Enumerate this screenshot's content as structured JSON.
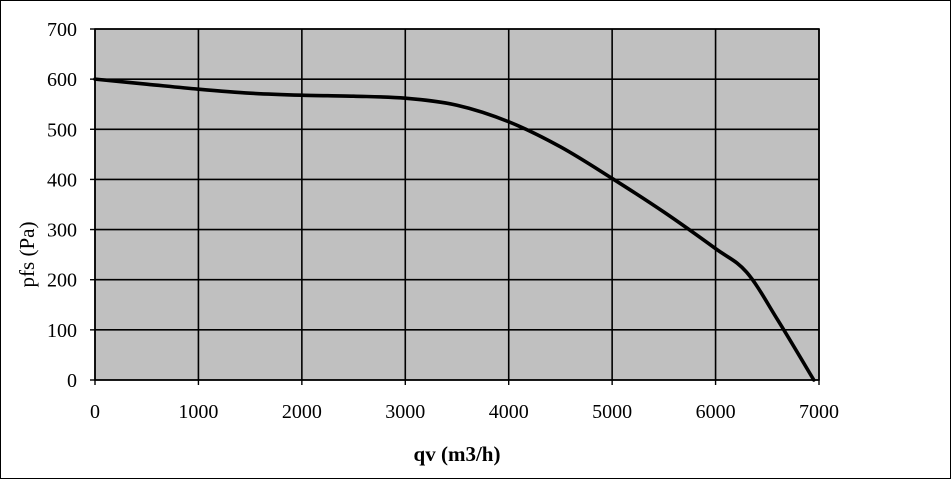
{
  "chart_data": {
    "type": "line",
    "xlabel": "qv (m3/h)",
    "ylabel": "pfs (Pa)",
    "xlim": [
      0,
      7000
    ],
    "ylim": [
      0,
      700
    ],
    "xticks": [
      "0",
      "1000",
      "2000",
      "3000",
      "4000",
      "5000",
      "6000",
      "7000"
    ],
    "yticks": [
      "0",
      "100",
      "200",
      "300",
      "400",
      "500",
      "600",
      "700"
    ],
    "grid": true,
    "legend": "none",
    "colors": {
      "plot_background": "#c0c0c0",
      "grid": "#000000",
      "line": "#000000"
    },
    "series": [
      {
        "x": [
          0,
          500,
          1000,
          1500,
          2000,
          2500,
          3000,
          3500,
          4000,
          4500,
          5000,
          5500,
          6000,
          6300,
          6600,
          6950
        ],
        "y": [
          600,
          590,
          580,
          572,
          568,
          566,
          562,
          548,
          515,
          465,
          402,
          335,
          262,
          215,
          120,
          0
        ]
      }
    ]
  }
}
